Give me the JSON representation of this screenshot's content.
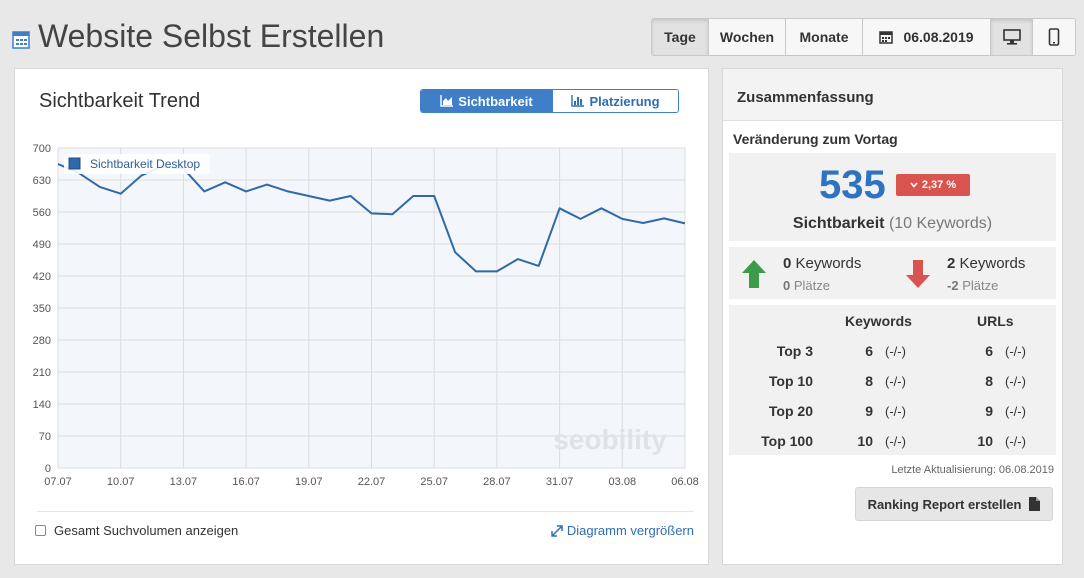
{
  "header": {
    "title": "Website Selbst Erstellen",
    "tabs": [
      "Tage",
      "Wochen",
      "Monate"
    ],
    "active_tab": "Tage",
    "date": "06.08.2019"
  },
  "trend": {
    "title": "Sichtbarkeit Trend",
    "toggle_visibility": "Sichtbarkeit",
    "toggle_ranking": "Platzierung",
    "checkbox_label": "Gesamt Suchvolumen anzeigen",
    "enlarge_label": "Diagramm vergrößern",
    "watermark": "seobility"
  },
  "chart_data": {
    "type": "area",
    "legend": "Sichtbarkeit Desktop",
    "legend_position": "top-left",
    "ylim": [
      0,
      700
    ],
    "yticks": [
      0,
      70,
      140,
      210,
      280,
      350,
      420,
      490,
      560,
      630,
      700
    ],
    "xticks": [
      "07.07",
      "10.07",
      "13.07",
      "16.07",
      "19.07",
      "22.07",
      "25.07",
      "28.07",
      "31.07",
      "03.08",
      "06.08"
    ],
    "dates": [
      "07.07",
      "08.07",
      "09.07",
      "10.07",
      "11.07",
      "12.07",
      "13.07",
      "14.07",
      "15.07",
      "16.07",
      "17.07",
      "18.07",
      "19.07",
      "20.07",
      "21.07",
      "22.07",
      "23.07",
      "24.07",
      "25.07",
      "26.07",
      "27.07",
      "28.07",
      "29.07",
      "30.07",
      "31.07",
      "01.08",
      "02.08",
      "03.08",
      "04.08",
      "05.08",
      "06.08"
    ],
    "values": [
      665,
      645,
      615,
      600,
      640,
      660,
      655,
      605,
      625,
      605,
      620,
      605,
      595,
      585,
      595,
      557,
      555,
      595,
      595,
      472,
      430,
      430,
      457,
      442,
      568,
      545,
      568,
      545,
      536,
      546,
      535
    ],
    "grid": true,
    "color": "#2f6aa8",
    "fill": "#f3f6fa"
  },
  "summary": {
    "title": "Zusammenfassung",
    "change_title": "Veränderung zum Vortag",
    "score": "535",
    "change": "2,37 %",
    "score_label": "Sichtbarkeit",
    "score_sub": "(10 Keywords)",
    "up_keywords_count": "0",
    "up_keywords_label": "Keywords",
    "up_places_count": "0",
    "up_places_label": "Plätze",
    "down_keywords_count": "2",
    "down_keywords_label": "Keywords",
    "down_places_count": "-2",
    "down_places_label": "Plätze",
    "col_keywords": "Keywords",
    "col_urls": "URLs",
    "rows": [
      {
        "label": "Top 3",
        "kw": "6",
        "kw_diff": "(-/-)",
        "url": "6",
        "url_diff": "(-/-)"
      },
      {
        "label": "Top 10",
        "kw": "8",
        "kw_diff": "(-/-)",
        "url": "8",
        "url_diff": "(-/-)"
      },
      {
        "label": "Top 20",
        "kw": "9",
        "kw_diff": "(-/-)",
        "url": "9",
        "url_diff": "(-/-)"
      },
      {
        "label": "Top 100",
        "kw": "10",
        "kw_diff": "(-/-)",
        "url": "10",
        "url_diff": "(-/-)"
      }
    ],
    "last_update": "Letzte Aktualisierung: 06.08.2019",
    "report_button": "Ranking Report erstellen"
  }
}
